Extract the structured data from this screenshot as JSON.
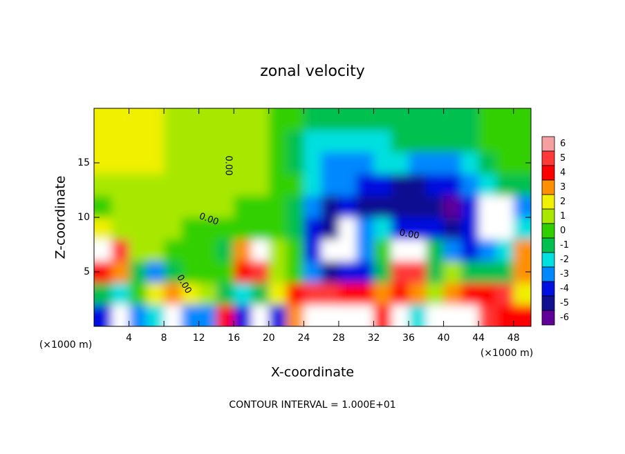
{
  "chart_data": {
    "type": "heatmap",
    "title": "zonal velocity",
    "x_label": "X-coordinate",
    "y_label": "Z-coordinate",
    "x_unit_left": "(×1000 m)",
    "x_unit_right": "(×1000 m)",
    "footer": "CONTOUR INTERVAL = 1.000E+01",
    "contour_labels": [
      "0.00",
      "0.00",
      "0.00",
      "0.00"
    ],
    "xlim": [
      0,
      50
    ],
    "ylim": [
      0,
      20
    ],
    "xticks": [
      4,
      8,
      12,
      16,
      20,
      24,
      28,
      32,
      36,
      40,
      44,
      48
    ],
    "yticks": [
      5,
      10,
      15
    ],
    "x": [
      1,
      3,
      5,
      7,
      9,
      11,
      13,
      15,
      17,
      19,
      21,
      23,
      25,
      27,
      29,
      31,
      33,
      35,
      37,
      39,
      41,
      43,
      45,
      47,
      49
    ],
    "z": [
      1,
      3,
      5,
      7,
      9,
      11,
      13,
      15,
      17,
      19
    ],
    "values": [
      [
        -4,
        7,
        -3,
        -2,
        7,
        -3,
        -3,
        4,
        -4,
        7,
        -4,
        3,
        7,
        7,
        7,
        7,
        4,
        7,
        -2,
        7,
        7,
        7,
        5,
        4,
        4
      ],
      [
        -1,
        -2,
        0,
        2,
        3,
        2,
        1,
        -1,
        -2,
        -1,
        2,
        4,
        5,
        5,
        4,
        4,
        3,
        4,
        3,
        1,
        3,
        4,
        4,
        5,
        2
      ],
      [
        4,
        3,
        -1,
        -3,
        -1,
        0,
        0,
        0,
        3.5,
        5,
        1,
        0,
        -3,
        -5,
        -4,
        -4,
        -1,
        5,
        5,
        -1,
        0.5,
        -1,
        -1,
        -1,
        3
      ],
      [
        7,
        4.5,
        1,
        0.5,
        0,
        0,
        0,
        -1,
        3,
        7,
        0.5,
        0,
        -4,
        7,
        7,
        -3,
        0,
        7,
        7,
        -1,
        -3,
        -4,
        -3,
        -2,
        3
      ],
      [
        2,
        1,
        0.5,
        0.5,
        0.5,
        0,
        0,
        0,
        0,
        0,
        0,
        -1,
        -4,
        -5,
        7,
        -3,
        -2.5,
        -4.5,
        -4,
        -4,
        -5,
        -4,
        7,
        7,
        -2
      ],
      [
        0,
        0.5,
        0.5,
        0.5,
        0.5,
        0.5,
        0.5,
        0.5,
        0,
        0,
        0,
        -1,
        -3,
        -5,
        -4.5,
        -5,
        -5.5,
        -5,
        -5,
        -5.5,
        -6,
        -4,
        7,
        7,
        -3
      ],
      [
        1,
        1,
        1,
        1,
        1,
        0.5,
        0.5,
        0.5,
        0.5,
        0.5,
        0,
        -0.5,
        -2.5,
        -3.5,
        -3.5,
        -4,
        -4.5,
        -5,
        -5,
        -4.5,
        -4,
        -3,
        -2,
        -1,
        -1
      ],
      [
        1.5,
        2,
        1.5,
        1.5,
        1,
        1,
        0.5,
        0.5,
        0.5,
        0.5,
        0,
        -1,
        -2.5,
        -3,
        -3,
        -3,
        -2.5,
        -2.5,
        -3,
        -3.5,
        -3,
        -2,
        -1,
        -0.5,
        -0.5
      ],
      [
        1.5,
        1.5,
        1.5,
        1.5,
        1,
        1,
        0.5,
        0.5,
        0.5,
        0.5,
        0,
        -1,
        -2,
        -2.5,
        -2.5,
        -2,
        -2,
        -1.5,
        -1.5,
        -1.5,
        -1,
        -1,
        -0.5,
        -0.5,
        -0.5
      ],
      [
        1.5,
        1.5,
        1.5,
        1.5,
        1,
        1,
        0.5,
        0.5,
        0.5,
        0.5,
        0,
        -0.5,
        -1,
        -1.5,
        -1.5,
        -1.5,
        -1.5,
        -1.5,
        -1.5,
        -1.5,
        -1,
        -1,
        -0.5,
        -0.5,
        -0.5
      ]
    ],
    "levels": [
      6,
      5,
      4,
      3,
      2,
      1,
      0,
      -1,
      -2,
      -3,
      -4,
      -5,
      -6
    ],
    "level_colors": [
      "#f5a0a0",
      "#ff3838",
      "#ff0000",
      "#ff9000",
      "#f0f000",
      "#a8e800",
      "#30d000",
      "#00c050",
      "#00e0e0",
      "#0088ff",
      "#0010e0",
      "#101090",
      "#600098"
    ],
    "above_color": "#ffffff"
  }
}
